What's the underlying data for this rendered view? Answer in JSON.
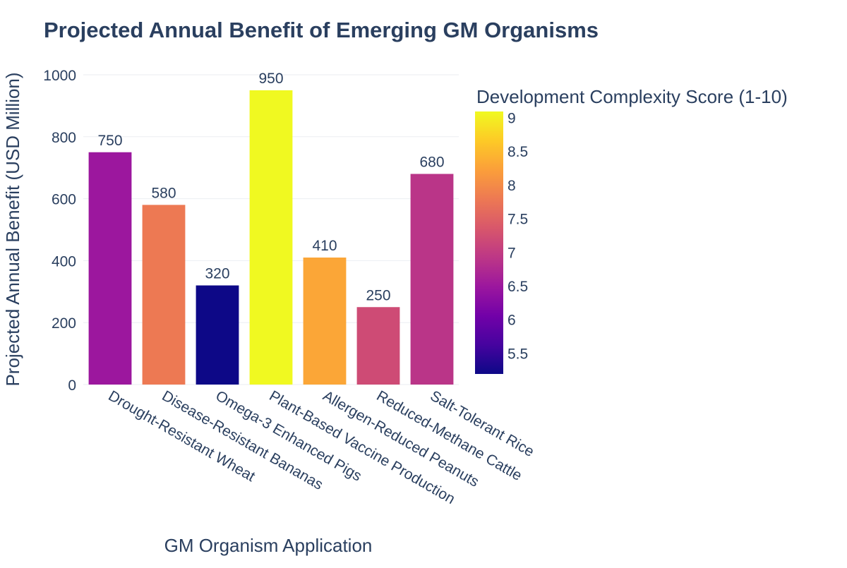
{
  "chart_data": {
    "type": "bar",
    "title": "Projected Annual Benefit of Emerging GM Organisms",
    "xlabel": "GM Organism Application",
    "ylabel": "Projected Annual Benefit (USD Million)",
    "categories": [
      "Drought-Resistant Wheat",
      "Disease-Resistant Bananas",
      "Omega-3 Enhanced Pigs",
      "Plant-Based Vaccine Production",
      "Allergen-Reduced Peanuts",
      "Reduced-Methane Cattle",
      "Salt-Tolerant Rice"
    ],
    "values": [
      750,
      580,
      320,
      950,
      410,
      250,
      680
    ],
    "color_values": [
      6.5,
      7.8,
      5.2,
      9.1,
      8.3,
      7.2,
      6.9
    ],
    "ylim": [
      0,
      1000
    ],
    "yticks": [
      0,
      200,
      400,
      600,
      800,
      1000
    ],
    "grid": true,
    "colorbar": {
      "title": "Development Complexity Score (1-10)",
      "ticks": [
        5.5,
        6,
        6.5,
        7,
        7.5,
        8,
        8.5,
        9
      ],
      "range": [
        5.2,
        9.1
      ],
      "colorscale": [
        "#0d0887",
        "#46039f",
        "#7201a8",
        "#9c179e",
        "#bd3786",
        "#d8576b",
        "#ed7953",
        "#fb9f3a",
        "#fdca26",
        "#f0f921"
      ]
    }
  }
}
